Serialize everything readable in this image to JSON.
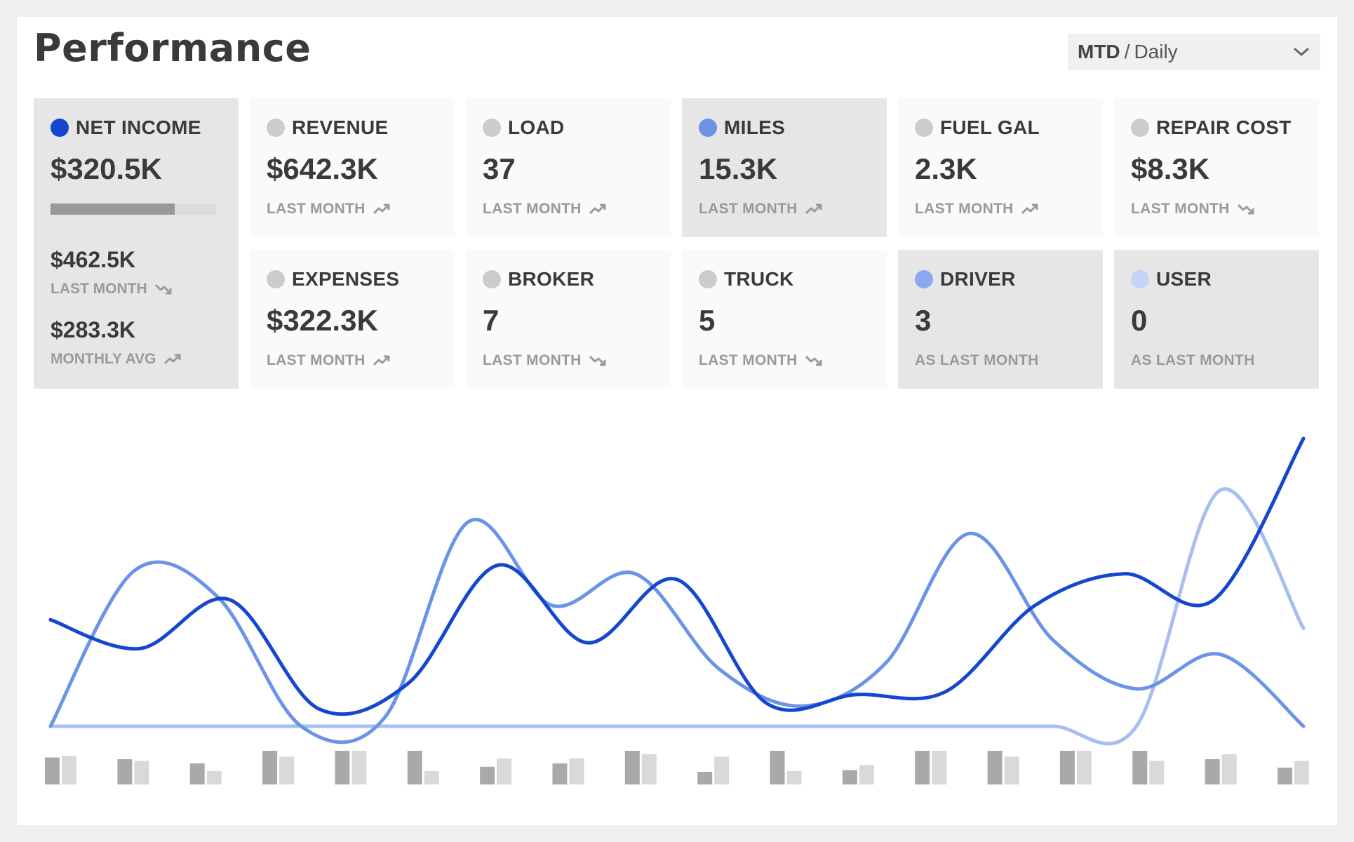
{
  "header": {
    "title": "Performance",
    "period_primary": "MTD",
    "period_separator": "/",
    "period_secondary": "Daily"
  },
  "net_income": {
    "label": "NET INCOME",
    "value": "$320.5K",
    "dot_color": "#1446d0",
    "progress_fraction": 0.75,
    "last_month_value": "$462.5K",
    "last_month_label": "LAST MONTH",
    "last_month_trend": "trend-down-icon",
    "avg_value": "$283.3K",
    "avg_label": "MONTHLY AVG",
    "avg_trend": "trend-up-icon"
  },
  "cards": [
    {
      "label": "REVENUE",
      "value": "$642.3K",
      "sub": "LAST MONTH",
      "trend": "trend-up-icon",
      "dot_color": "#cccccc"
    },
    {
      "label": "LOAD",
      "value": "37",
      "sub": "LAST MONTH",
      "trend": "trend-up-icon",
      "dot_color": "#cccccc"
    },
    {
      "label": "MILES",
      "value": "15.3K",
      "sub": "LAST MONTH",
      "trend": "trend-up-icon",
      "dot_color": "#6b94e8"
    },
    {
      "label": "FUEL GAL",
      "value": "2.3K",
      "sub": "LAST MONTH",
      "trend": "trend-up-icon",
      "dot_color": "#cccccc"
    },
    {
      "label": "REPAIR COST",
      "value": "$8.3K",
      "sub": "LAST MONTH",
      "trend": "trend-down-icon",
      "dot_color": "#cccccc"
    },
    {
      "label": "EXPENSES",
      "value": "$322.3K",
      "sub": "LAST MONTH",
      "trend": "trend-up-icon",
      "dot_color": "#cccccc"
    },
    {
      "label": "BROKER",
      "value": "7",
      "sub": "LAST MONTH",
      "trend": "trend-down-icon",
      "dot_color": "#cccccc"
    },
    {
      "label": "TRUCK",
      "value": "5",
      "sub": "LAST MONTH",
      "trend": "trend-down-icon",
      "dot_color": "#cccccc"
    },
    {
      "label": "DRIVER",
      "value": "3",
      "sub": "AS LAST MONTH",
      "trend": "",
      "dot_color": "#8aa9f0"
    },
    {
      "label": "USER",
      "value": "0",
      "sub": "AS LAST MONTH",
      "trend": "",
      "dot_color": "#c2d3f8"
    }
  ],
  "chart_data": {
    "type": "line",
    "ylim": [
      0,
      100
    ],
    "series": [
      {
        "color": "#1446d0",
        "values": [
          37,
          27,
          44,
          6,
          15,
          56,
          29,
          51,
          8,
          11,
          12,
          42,
          53,
          44,
          100
        ]
      },
      {
        "color": "#6b94e8",
        "values": [
          0,
          54,
          45,
          0,
          3,
          71,
          42,
          53,
          20,
          7,
          22,
          67,
          30,
          13,
          25,
          0
        ]
      },
      {
        "color": "#a6bff0",
        "values": [
          0,
          0,
          0,
          0,
          0,
          0,
          0,
          0,
          0,
          0,
          0,
          0,
          0,
          0,
          82,
          34
        ]
      }
    ],
    "bars": {
      "colors": [
        "#a9a9a9",
        "#d9d9d9"
      ],
      "pairs": [
        [
          32,
          34
        ],
        [
          30,
          28
        ],
        [
          25,
          16
        ],
        [
          40,
          33
        ],
        [
          40,
          40
        ],
        [
          40,
          16
        ],
        [
          21,
          31
        ],
        [
          25,
          31
        ],
        [
          40,
          36
        ],
        [
          15,
          33
        ],
        [
          40,
          16
        ],
        [
          17,
          23
        ],
        [
          40,
          40
        ],
        [
          40,
          33
        ],
        [
          40,
          40
        ],
        [
          40,
          28
        ],
        [
          30,
          36
        ],
        [
          20,
          28
        ]
      ]
    }
  }
}
